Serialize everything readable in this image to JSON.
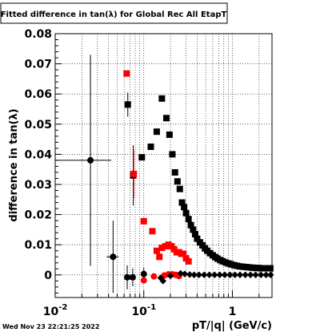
{
  "chart_data": {
    "type": "scatter",
    "title": "Fitted difference in tan(λ) for Global Rec All EtapT",
    "ylabel": "difference in tan(λ)",
    "xlabel": "pT/|q| (GeV/c)",
    "timestamp": "Wed Nov 23 22:21:25 2022",
    "xscale": "log",
    "xlim": [
      0.01,
      2.8
    ],
    "ylim": [
      -0.0075,
      0.08
    ],
    "grid": true,
    "y_ticks": [
      {
        "v": 0,
        "t": "0"
      },
      {
        "v": 0.01,
        "t": "0.01"
      },
      {
        "v": 0.02,
        "t": "0.02"
      },
      {
        "v": 0.03,
        "t": "0.03"
      },
      {
        "v": 0.04,
        "t": "0.04"
      },
      {
        "v": 0.05,
        "t": "0.05"
      },
      {
        "v": 0.06,
        "t": "0.06"
      },
      {
        "v": 0.07,
        "t": "0.07"
      },
      {
        "v": 0.08,
        "t": "0.08"
      }
    ],
    "x_ticks": [
      {
        "v": 0.01,
        "base": "10",
        "exp": "-2"
      },
      {
        "v": 0.1,
        "base": "10",
        "exp": "-1"
      },
      {
        "v": 1,
        "base": "1",
        "exp": ""
      }
    ],
    "series": [
      {
        "color": "#000000",
        "marker": "square",
        "points": [
          [
            0.066,
            0.0565,
            0.004
          ],
          [
            0.076,
            0.033,
            0.01
          ],
          [
            0.095,
            0.039,
            0
          ],
          [
            0.12,
            0.0425,
            0
          ],
          [
            0.14,
            0.0475,
            0
          ],
          [
            0.16,
            0.0585,
            0
          ],
          [
            0.18,
            0.052,
            0
          ],
          [
            0.195,
            0.0465,
            0
          ],
          [
            0.21,
            0.04,
            0
          ],
          [
            0.225,
            0.034,
            0
          ],
          [
            0.24,
            0.031,
            0
          ],
          [
            0.255,
            0.0285,
            0
          ],
          [
            0.27,
            0.024,
            0
          ],
          [
            0.285,
            0.0225,
            0
          ],
          [
            0.3,
            0.0205,
            0
          ],
          [
            0.32,
            0.0185,
            0
          ],
          [
            0.34,
            0.0165,
            0
          ],
          [
            0.36,
            0.015,
            0
          ],
          [
            0.38,
            0.0135,
            0
          ],
          [
            0.4,
            0.012,
            0
          ],
          [
            0.43,
            0.0108,
            0
          ],
          [
            0.46,
            0.0098,
            0
          ],
          [
            0.49,
            0.0088,
            0
          ],
          [
            0.52,
            0.008,
            0
          ],
          [
            0.56,
            0.0072,
            0
          ],
          [
            0.6,
            0.0065,
            0
          ],
          [
            0.64,
            0.0059,
            0
          ],
          [
            0.68,
            0.0054,
            0
          ],
          [
            0.73,
            0.0049,
            0
          ],
          [
            0.78,
            0.0045,
            0
          ],
          [
            0.84,
            0.0041,
            0
          ],
          [
            0.9,
            0.0038,
            0
          ],
          [
            0.97,
            0.0035,
            0
          ],
          [
            1.05,
            0.0032,
            0
          ],
          [
            1.13,
            0.003,
            0
          ],
          [
            1.22,
            0.0028,
            0
          ],
          [
            1.32,
            0.0027,
            0
          ],
          [
            1.43,
            0.0026,
            0
          ],
          [
            1.55,
            0.0025,
            0
          ],
          [
            1.68,
            0.0024,
            0
          ],
          [
            1.82,
            0.0023,
            0
          ],
          [
            1.97,
            0.0023,
            0
          ],
          [
            2.13,
            0.0022,
            0
          ],
          [
            2.3,
            0.0022,
            0
          ],
          [
            2.48,
            0.0022,
            0
          ],
          [
            2.68,
            0.0022,
            0
          ]
        ]
      },
      {
        "color": "#ff0000",
        "marker": "square",
        "points": [
          [
            0.064,
            0.0668,
            0
          ],
          [
            0.077,
            0.0335,
            0.008
          ],
          [
            0.1,
            0.0178,
            0
          ],
          [
            0.125,
            0.0145,
            0
          ],
          [
            0.14,
            0.008,
            0
          ],
          [
            0.15,
            0.006,
            0
          ],
          [
            0.16,
            0.009,
            0
          ],
          [
            0.175,
            0.0095,
            0
          ],
          [
            0.19,
            0.01,
            0
          ],
          [
            0.205,
            0.0095,
            0
          ],
          [
            0.22,
            0.0085,
            0
          ],
          [
            0.235,
            0.0075,
            0
          ],
          [
            0.25,
            0.0075,
            0
          ],
          [
            0.265,
            0.007,
            0
          ],
          [
            0.28,
            0.007,
            0
          ],
          [
            0.3,
            0.0055,
            0
          ],
          [
            0.32,
            0.0045,
            0
          ]
        ]
      },
      {
        "color": "#000000",
        "marker": "circle",
        "points": [
          [
            0.025,
            0.038,
            0.035
          ],
          [
            0.045,
            0.006,
            0.012
          ],
          [
            0.065,
            -0.0008,
            0.004
          ],
          [
            0.075,
            -0.0008,
            0.003
          ],
          [
            0.1,
            0.0003,
            0.002
          ]
        ]
      },
      {
        "color": "#ff0000",
        "marker": "circle",
        "points": [
          [
            0.1,
            -0.0018,
            0
          ],
          [
            0.13,
            -0.0005,
            0
          ],
          [
            0.17,
            -0.0002,
            0
          ],
          [
            0.19,
            0.0002,
            0
          ],
          [
            0.21,
            0.0002,
            0
          ],
          [
            0.23,
            0.0,
            0
          ],
          [
            0.25,
            -0.0004,
            0
          ]
        ]
      },
      {
        "color": "#000000",
        "marker": "diamond",
        "points": [
          [
            0.155,
            -0.001,
            0
          ],
          [
            0.165,
            -0.002,
            0
          ],
          [
            0.2,
            -0.0003,
            0
          ],
          [
            0.26,
            0.0005,
            0
          ],
          [
            0.29,
            0.0003,
            0
          ],
          [
            0.33,
            0.0001,
            0
          ],
          [
            0.37,
            0.0,
            0
          ],
          [
            0.42,
            0.0,
            0
          ],
          [
            0.48,
            0.0,
            0
          ],
          [
            0.55,
            0.0,
            0
          ],
          [
            0.63,
            0.0,
            0
          ],
          [
            0.72,
            0.0,
            0
          ],
          [
            0.82,
            0.0,
            0
          ],
          [
            0.94,
            0.0,
            0
          ],
          [
            1.07,
            0.0,
            0
          ],
          [
            1.22,
            0.0,
            0
          ],
          [
            1.4,
            0.0,
            0
          ],
          [
            1.6,
            0.0,
            0
          ],
          [
            1.83,
            0.0,
            0
          ],
          [
            2.1,
            0.0,
            0
          ],
          [
            2.4,
            0.0,
            0
          ],
          [
            2.7,
            0.0,
            0
          ]
        ]
      }
    ]
  }
}
